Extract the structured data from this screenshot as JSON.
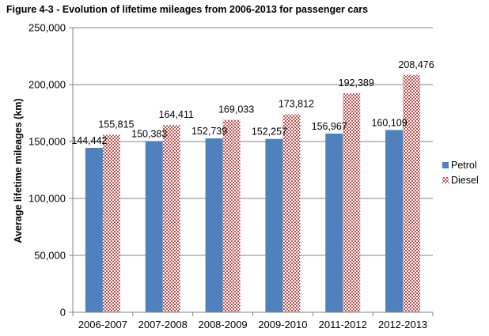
{
  "chart_data": {
    "type": "bar",
    "title": "Figure 4-3 - Evolution of lifetime mileages from 2006-2013 for passenger cars",
    "xlabel": "",
    "ylabel": "Average lifetime  mileages (km)",
    "categories": [
      "2006-2007",
      "2007-2008",
      "2008-2009",
      "2009-2010",
      "2011-2012",
      "2012-2013"
    ],
    "series": [
      {
        "name": "Petrol",
        "values": [
          144442,
          150383,
          152739,
          152257,
          156967,
          160109
        ],
        "labels": [
          "144,442",
          "150,383",
          "152,739",
          "152,257",
          "156,967",
          "160,109"
        ],
        "color": "#4f81bd",
        "pattern": "solid"
      },
      {
        "name": "Diesel",
        "values": [
          155815,
          164411,
          169033,
          173812,
          192389,
          208476
        ],
        "labels": [
          "155,815",
          "164,411",
          "169,033",
          "173,812",
          "192,389",
          "208,476"
        ],
        "color": "#c0504d",
        "pattern": "checkered"
      }
    ],
    "ylim": [
      0,
      250000
    ],
    "yticks": [
      0,
      50000,
      100000,
      150000,
      200000,
      250000
    ],
    "ytick_labels": [
      "0",
      "50,000",
      "100,000",
      "150,000",
      "200,000",
      "250,000"
    ],
    "grid": true,
    "legend_position": "right"
  }
}
